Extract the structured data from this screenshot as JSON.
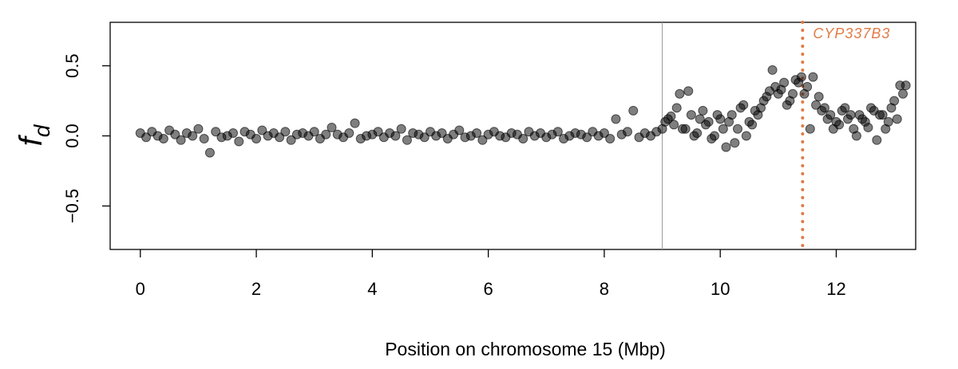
{
  "chart_data": {
    "type": "scatter",
    "xlabel": "Position on chromosome 15 (Mbp)",
    "ylabel": "f",
    "ylabel_subscript": "d",
    "xlim": [
      -0.52,
      13.37
    ],
    "ylim": [
      -0.81,
      0.81
    ],
    "xticks": [
      0,
      2,
      4,
      6,
      8,
      10,
      12
    ],
    "yticks": [
      {
        "value": -0.5,
        "label": "−0.5"
      },
      {
        "value": 0,
        "label": "0.0"
      },
      0.5
    ],
    "color": "#000000",
    "x": [
      0.0,
      0.1,
      0.2,
      0.3,
      0.4,
      0.5,
      0.6,
      0.7,
      0.8,
      0.9,
      1.0,
      1.1,
      1.2,
      1.3,
      1.4,
      1.5,
      1.6,
      1.7,
      1.8,
      1.9,
      2.0,
      2.1,
      2.2,
      2.3,
      2.4,
      2.5,
      2.6,
      2.7,
      2.8,
      2.9,
      3.0,
      3.1,
      3.2,
      3.3,
      3.4,
      3.5,
      3.6,
      3.7,
      3.8,
      3.9,
      4.0,
      4.1,
      4.2,
      4.3,
      4.4,
      4.5,
      4.6,
      4.7,
      4.8,
      4.9,
      5.0,
      5.1,
      5.2,
      5.3,
      5.4,
      5.5,
      5.6,
      5.7,
      5.8,
      5.9,
      6.0,
      6.1,
      6.2,
      6.3,
      6.4,
      6.5,
      6.6,
      6.7,
      6.8,
      6.9,
      7.0,
      7.1,
      7.2,
      7.3,
      7.4,
      7.5,
      7.6,
      7.7,
      7.8,
      7.9,
      8.0,
      8.1,
      8.2,
      8.3,
      8.4,
      8.5,
      8.6,
      8.7,
      8.8,
      8.9,
      9.0,
      9.1,
      9.2,
      9.3,
      9.4,
      9.5,
      9.6,
      9.7,
      9.8,
      9.9,
      10.0,
      10.1,
      10.2,
      10.3,
      10.4,
      10.5,
      10.6,
      10.7,
      10.8,
      10.9,
      11.0,
      11.1,
      11.2,
      11.3,
      11.4,
      11.5,
      11.6,
      11.7,
      11.8,
      11.9,
      12.0,
      12.1,
      12.2,
      12.3,
      12.4,
      12.5,
      12.6,
      12.7,
      12.8,
      12.9,
      13.0,
      13.1,
      13.2,
      9.05,
      9.15,
      9.25,
      9.35,
      9.45,
      9.55,
      9.65,
      9.75,
      9.85,
      9.95,
      10.05,
      10.15,
      10.25,
      10.35,
      10.45,
      10.55,
      10.65,
      10.75,
      10.85,
      10.95,
      11.05,
      11.15,
      11.25,
      11.35,
      11.45,
      11.55,
      11.65,
      11.75,
      11.85,
      11.95,
      12.05,
      12.15,
      12.25,
      12.35,
      12.45,
      12.55,
      12.65,
      12.75,
      12.85,
      12.95,
      13.05,
      13.15
    ],
    "values": [
      0.02,
      -0.01,
      0.03,
      0.0,
      -0.02,
      0.04,
      0.01,
      -0.03,
      0.02,
      0.0,
      0.05,
      -0.02,
      -0.12,
      0.03,
      -0.01,
      0.0,
      0.02,
      -0.04,
      0.03,
      0.01,
      -0.02,
      0.04,
      0.0,
      0.02,
      -0.01,
      0.03,
      -0.03,
      0.01,
      0.02,
      0.0,
      0.03,
      -0.02,
      0.01,
      0.06,
      0.01,
      -0.01,
      0.02,
      0.09,
      -0.02,
      0.0,
      0.01,
      0.03,
      -0.01,
      0.02,
      0.0,
      0.05,
      -0.03,
      0.02,
      0.01,
      -0.01,
      0.03,
      0.0,
      0.02,
      -0.02,
      0.01,
      0.04,
      -0.01,
      0.0,
      0.02,
      -0.03,
      0.01,
      0.03,
      0.0,
      -0.01,
      0.02,
      0.01,
      -0.02,
      0.03,
      0.0,
      0.02,
      -0.01,
      0.01,
      0.03,
      -0.02,
      0.0,
      0.02,
      0.01,
      -0.01,
      0.03,
      0.0,
      0.02,
      -0.02,
      0.12,
      0.01,
      0.03,
      0.18,
      -0.01,
      0.02,
      0.0,
      0.03,
      0.05,
      0.12,
      0.08,
      0.3,
      0.05,
      0.15,
      0.02,
      0.18,
      0.1,
      0.0,
      0.12,
      -0.08,
      0.15,
      0.05,
      0.22,
      0.1,
      0.18,
      0.2,
      0.28,
      0.47,
      0.3,
      0.38,
      0.25,
      0.4,
      0.42,
      0.35,
      0.42,
      0.28,
      0.2,
      0.15,
      0.1,
      0.18,
      0.12,
      0.05,
      0.15,
      0.1,
      0.2,
      -0.03,
      0.15,
      0.1,
      0.25,
      0.36,
      0.36,
      0.1,
      0.14,
      0.2,
      0.05,
      0.32,
      0.0,
      0.12,
      0.08,
      -0.02,
      0.15,
      0.05,
      0.1,
      -0.05,
      0.2,
      0.0,
      0.08,
      0.15,
      0.25,
      0.32,
      0.35,
      0.33,
      0.22,
      0.3,
      0.38,
      0.3,
      0.05,
      0.22,
      0.18,
      0.12,
      0.05,
      0.08,
      0.2,
      0.15,
      0.0,
      0.12,
      0.06,
      0.18,
      0.15,
      0.05,
      0.2,
      0.12,
      0.3
    ],
    "vlines": [
      {
        "x": 9,
        "color": "#999999"
      },
      {
        "x": 11.42,
        "color": "#e07a45",
        "label": "CYP337B3"
      }
    ]
  }
}
